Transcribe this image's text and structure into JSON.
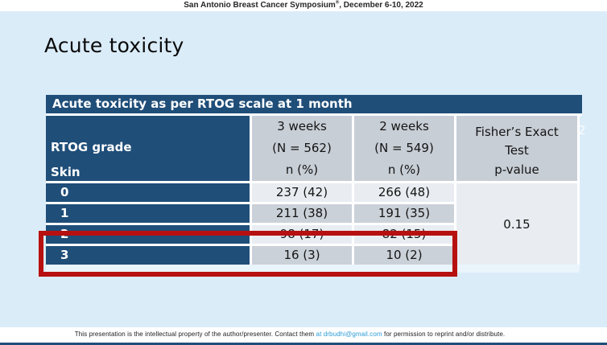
{
  "conference_banner": {
    "name": "San Antonio Breast Cancer Symposium",
    "registered_mark": "®",
    "dates_suffix": ", December 6-10, 2022"
  },
  "slide": {
    "title": "Acute toxicity",
    "page_number": "2"
  },
  "table": {
    "caption": "Acute toxicity as per RTOG scale at 1 month",
    "row_header": {
      "group": "RTOG grade",
      "subgroup": "Skin"
    },
    "columns": [
      {
        "period": "3 weeks",
        "n_label": "(N = 562)",
        "unit": "n (%)"
      },
      {
        "period": "2 weeks",
        "n_label": "(N = 549)",
        "unit": "n (%)"
      },
      {
        "test_line1": "Fisher’s Exact",
        "test_line2": "Test",
        "unit": "p-value"
      }
    ],
    "rows": [
      {
        "grade": "0",
        "three_weeks": "237 (42)",
        "two_weeks": "266 (48)"
      },
      {
        "grade": "1",
        "three_weeks": "211 (38)",
        "two_weeks": "191 (35)"
      },
      {
        "grade": "2",
        "three_weeks": "98 (17)",
        "two_weeks": "82 (15)"
      },
      {
        "grade": "3",
        "three_weeks": "16 (3)",
        "two_weeks": "10 (2)"
      }
    ],
    "p_value": "0.15"
  },
  "annotation": {
    "type": "red-rectangle-highlight",
    "highlighted_grades": "2 and 3"
  },
  "footer": {
    "text_before": "This presentation is the intellectual property of the author/presenter. Contact them ",
    "contact_link": "at  drbudhi@gmail.com",
    "text_after": " for permission to reprint and/or distribute."
  },
  "colors": {
    "navy": "#1f4e79",
    "slide_bg": "#dbecf9",
    "header_gray": "#c8ced6",
    "row_light": "#e9edf1",
    "row_dark": "#cbd1d8",
    "highlight_red": "#b71010",
    "link_blue": "#2b9cd8"
  }
}
